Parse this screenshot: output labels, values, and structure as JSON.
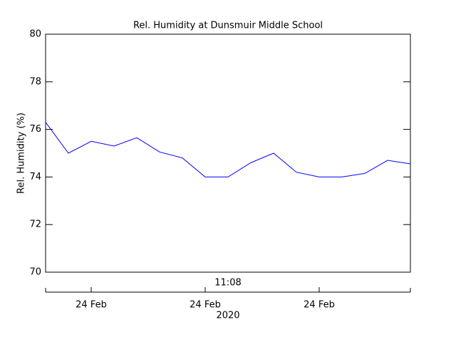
{
  "chart_data": {
    "type": "line",
    "title": "Rel. Humidity at Dunsmuir Middle School",
    "ylabel": "Rel. Humidity (%)",
    "time_label": "11:08",
    "xlabel": "2020",
    "x": [
      0,
      1,
      2,
      3,
      4,
      5,
      6,
      7,
      8,
      9,
      10,
      11,
      12,
      13,
      14,
      15,
      16
    ],
    "series": [
      {
        "color": "#0000ff",
        "values": [
          76.3,
          75.0,
          75.5,
          75.3,
          75.65,
          75.05,
          74.8,
          74.0,
          74.0,
          74.6,
          75.0,
          74.2,
          74.0,
          74.0,
          74.15,
          74.7,
          74.55
        ]
      }
    ],
    "xlim": [
      0,
      16
    ],
    "xticks": [
      {
        "value": 2,
        "label": "24 Feb"
      },
      {
        "value": 7,
        "label": "24 Feb"
      },
      {
        "value": 12,
        "label": "24 Feb"
      }
    ],
    "ylim": [
      70,
      80
    ],
    "yticks": [
      70,
      72,
      74,
      76,
      78,
      80
    ]
  }
}
